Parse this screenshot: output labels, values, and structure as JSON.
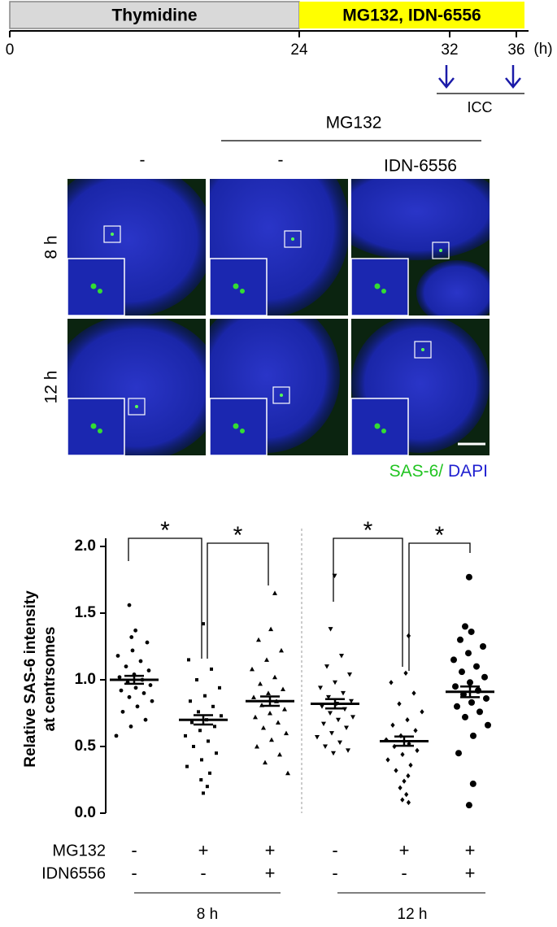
{
  "timeline": {
    "phases": [
      {
        "label": "Thymidine",
        "start": 0,
        "end": 24,
        "color": "#d9d9d9"
      },
      {
        "label": "MG132, IDN-6556",
        "start": 24,
        "end": 36,
        "color": "#ffff00"
      }
    ],
    "ticks": [
      0,
      24,
      32,
      36
    ],
    "unit": "(h)",
    "arrows": [
      32,
      36
    ],
    "arrow_color": "#1a1aa8",
    "arrow_label": "ICC"
  },
  "images": {
    "group_label": "MG132",
    "columns": [
      "-",
      "-",
      "IDN-6556"
    ],
    "rows": [
      "8 h",
      "12 h"
    ],
    "stain": [
      {
        "label": "SAS-6/",
        "color": "#22c422"
      },
      {
        "label": " DAPI",
        "color": "#1f1fd0"
      }
    ]
  },
  "chart_data": {
    "type": "dotplot",
    "ylabel": [
      "Relative SAS-6 intensity",
      "at centrsomes"
    ],
    "ylim": [
      0,
      2
    ],
    "yticks": [
      {
        "value": 0,
        "label": "0.0"
      },
      {
        "value": 0.5,
        "label": "0.5"
      },
      {
        "value": 1,
        "label": "1.0"
      },
      {
        "value": 1.5,
        "label": "1.5"
      },
      {
        "value": 2,
        "label": "2.0"
      }
    ],
    "color": "#000000",
    "series": [
      {
        "marker": "circle",
        "mean": 1.0,
        "sem": 0.03,
        "values": [
          1.56,
          1.37,
          1.32,
          1.28,
          1.22,
          1.18,
          1.14,
          1.1,
          1.07,
          1.04,
          1.02,
          1.0,
          0.98,
          0.96,
          0.94,
          0.92,
          0.9,
          0.87,
          0.84,
          0.8,
          0.76,
          0.7,
          0.65,
          0.58
        ]
      },
      {
        "marker": "square",
        "mean": 0.7,
        "sem": 0.035,
        "values": [
          1.42,
          1.15,
          1.08,
          1.0,
          0.94,
          0.88,
          0.84,
          0.8,
          0.76,
          0.73,
          0.7,
          0.68,
          0.65,
          0.62,
          0.58,
          0.54,
          0.5,
          0.45,
          0.4,
          0.35,
          0.3,
          0.25,
          0.2,
          0.15
        ]
      },
      {
        "marker": "triangle-up",
        "mean": 0.84,
        "sem": 0.035,
        "values": [
          1.65,
          1.38,
          1.3,
          1.22,
          1.15,
          1.08,
          1.02,
          0.97,
          0.93,
          0.9,
          0.87,
          0.84,
          0.81,
          0.78,
          0.75,
          0.72,
          0.68,
          0.64,
          0.6,
          0.55,
          0.5,
          0.44,
          0.38,
          0.3
        ]
      },
      {
        "marker": "triangle-down",
        "mean": 0.82,
        "sem": 0.035,
        "values": [
          1.78,
          1.38,
          1.18,
          1.1,
          1.04,
          0.98,
          0.94,
          0.9,
          0.87,
          0.84,
          0.82,
          0.8,
          0.78,
          0.75,
          0.72,
          0.7,
          0.67,
          0.64,
          0.6,
          0.57,
          0.53,
          0.5,
          0.47,
          0.45
        ]
      },
      {
        "marker": "diamond",
        "mean": 0.54,
        "sem": 0.035,
        "values": [
          1.33,
          1.05,
          0.98,
          0.9,
          0.82,
          0.76,
          0.7,
          0.66,
          0.62,
          0.58,
          0.55,
          0.52,
          0.5,
          0.47,
          0.44,
          0.4,
          0.36,
          0.32,
          0.28,
          0.24,
          0.19,
          0.14,
          0.1,
          0.08
        ]
      },
      {
        "marker": "big-circle",
        "mean": 0.91,
        "sem": 0.04,
        "values": [
          1.77,
          1.4,
          1.36,
          1.3,
          1.25,
          1.2,
          1.15,
          1.1,
          1.06,
          1.02,
          0.98,
          0.95,
          0.92,
          0.89,
          0.86,
          0.83,
          0.8,
          0.76,
          0.72,
          0.66,
          0.58,
          0.45,
          0.22,
          0.06
        ]
      }
    ],
    "significance": [
      "*",
      "*",
      "*",
      "*"
    ],
    "treatments": [
      {
        "name": "MG132",
        "signs": [
          "-",
          "+",
          "+",
          "-",
          "+",
          "+"
        ]
      },
      {
        "name": "IDN6556",
        "signs": [
          "-",
          "-",
          "+",
          "-",
          "-",
          "+"
        ]
      }
    ],
    "timepoints": [
      "8 h",
      "12 h"
    ]
  }
}
